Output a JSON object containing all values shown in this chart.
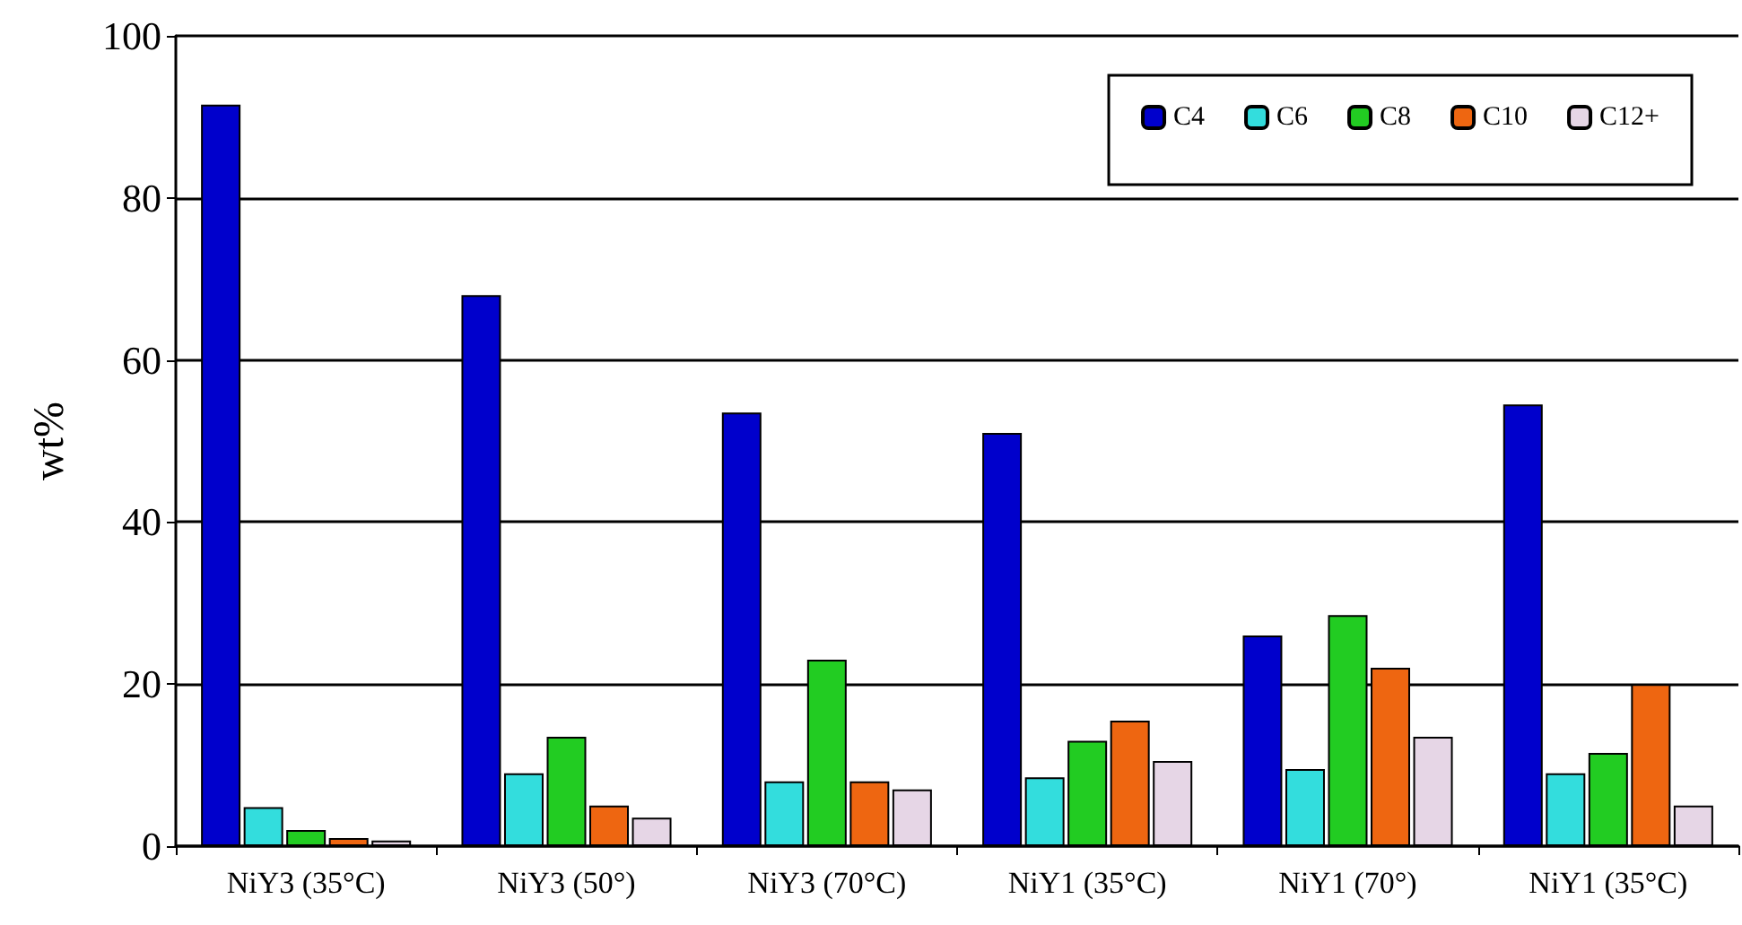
{
  "chart_data": {
    "type": "bar",
    "ylabel": "wt%",
    "categories": [
      "NiY3 (35°C)",
      "NiY3 (50°)",
      "NiY3 (70°C)",
      "NiY1 (35°C)",
      "NiY1 (70°)",
      "NiY1 (35°C)"
    ],
    "series": [
      {
        "name": "C4",
        "color": "#0000cc",
        "values": [
          91.5,
          68,
          53.5,
          51,
          26,
          54.5
        ]
      },
      {
        "name": "C6",
        "color": "#33dddd",
        "values": [
          4.8,
          9,
          8,
          8.5,
          9.5,
          9
        ]
      },
      {
        "name": "C8",
        "color": "#22cc22",
        "values": [
          2,
          13.5,
          23,
          13,
          28.5,
          11.5
        ]
      },
      {
        "name": "C10",
        "color": "#ee6611",
        "values": [
          1,
          5,
          8,
          15.5,
          22,
          20
        ]
      },
      {
        "name": "C12+",
        "color": "#e6d6e6",
        "values": [
          0.7,
          3.5,
          7,
          10.5,
          13.5,
          5
        ]
      }
    ],
    "ylim": [
      0,
      100
    ],
    "yticks": [
      0,
      20,
      40,
      60,
      80,
      100
    ],
    "grid": "y",
    "legend": "top right"
  }
}
